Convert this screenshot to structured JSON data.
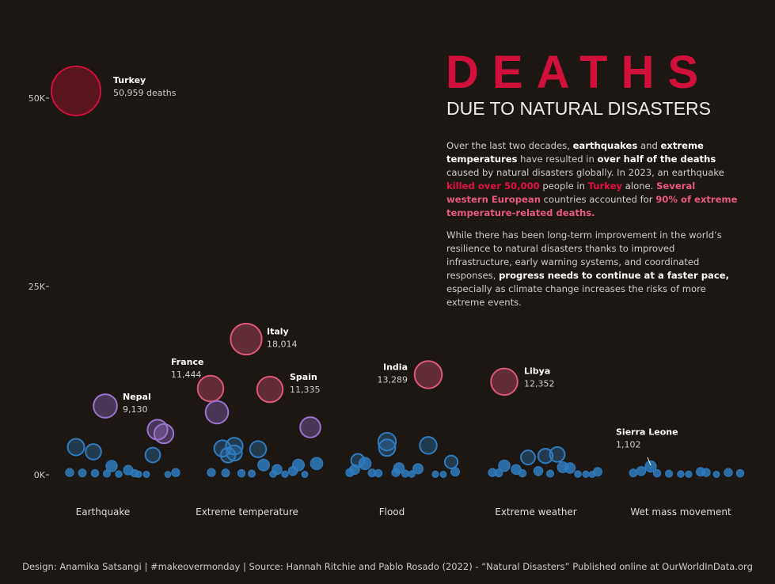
{
  "header": {
    "title": "DEATHS",
    "subtitle": "DUE TO NATURAL DISASTERS"
  },
  "paragraph1": {
    "t1": "Over the last two decades, ",
    "b1": "earthquakes",
    "t2": " and ",
    "b2": "extreme temperatures",
    "t3": " have resulted in ",
    "b3": "over half of the deaths",
    "t4": " caused by natural disasters globally. In 2023, an earthquake ",
    "r1": "killed over 50,000",
    "t5": " people in ",
    "r2": "Turkey",
    "t6": " alone. ",
    "p1": "Several western European",
    "t7": " countries accounted for ",
    "p2": "90% of extreme temperature-related deaths."
  },
  "paragraph2": {
    "t1": "While there has been long-term improvement in the world’s resilience to natural disasters thanks to improved infrastructure, early warning systems, and coordinated responses, ",
    "b1": "progress needs to continue at a faster pace,",
    "t2": " especially as climate change increases the risks of more extreme events."
  },
  "footer": "Design: Anamika Satsangi | #makeovermonday | Source: Hannah Ritchie and Pablo Rosado (2022) - “Natural Disasters” Published online at OurWorldInData.org",
  "colors": {
    "background": "#1c1712",
    "title": "#d0103a",
    "low": "#2f7bbf",
    "mid": "#9a72d0",
    "high": "#e0557a",
    "top": "#d0103a"
  },
  "chart_data": {
    "type": "scatter",
    "title": "Deaths due to natural disasters",
    "ylim": [
      0,
      52000
    ],
    "yticks": [
      {
        "v": 0,
        "label": "0K"
      },
      {
        "v": 25000,
        "label": "25K"
      },
      {
        "v": 50000,
        "label": "50K"
      }
    ],
    "categories": [
      "Earthquake",
      "Extreme temperature",
      "Flood",
      "Extreme weather",
      "Wet mass movement"
    ],
    "series": [
      {
        "name": "Earthquake",
        "points": [
          {
            "value": 50959,
            "label": "Turkey",
            "valueLabel": "50,959 deaths"
          },
          {
            "value": 9130,
            "label": "Nepal",
            "valueLabel": "9,130"
          },
          {
            "value": 5990
          },
          {
            "value": 5460
          },
          {
            "value": 3680
          },
          {
            "value": 3050
          },
          {
            "value": 2630
          },
          {
            "value": 1160
          },
          {
            "value": 620
          },
          {
            "value": 300
          },
          {
            "value": 250
          },
          {
            "value": 200
          },
          {
            "value": 150
          },
          {
            "value": 100
          },
          {
            "value": 80
          },
          {
            "value": 60
          },
          {
            "value": 50
          },
          {
            "value": 300
          },
          {
            "value": 200
          }
        ]
      },
      {
        "name": "Extreme temperature",
        "points": [
          {
            "value": 18014,
            "label": "Italy",
            "valueLabel": "18,014"
          },
          {
            "value": 11444,
            "label": "France",
            "valueLabel": "11,444"
          },
          {
            "value": 11335,
            "label": "Spain",
            "valueLabel": "11,335"
          },
          {
            "value": 8300
          },
          {
            "value": 6300
          },
          {
            "value": 3500
          },
          {
            "value": 3800
          },
          {
            "value": 2600
          },
          {
            "value": 2900
          },
          {
            "value": 3400
          },
          {
            "value": 1300
          },
          {
            "value": 1300
          },
          {
            "value": 1500
          },
          {
            "value": 700
          },
          {
            "value": 500
          },
          {
            "value": 300
          },
          {
            "value": 250
          },
          {
            "value": 200
          },
          {
            "value": 150
          },
          {
            "value": 100
          },
          {
            "value": 80
          },
          {
            "value": 60
          }
        ]
      },
      {
        "name": "Flood",
        "points": [
          {
            "value": 13289,
            "label": "India",
            "valueLabel": "13,289"
          },
          {
            "value": 4400
          },
          {
            "value": 3600
          },
          {
            "value": 3900
          },
          {
            "value": 1900
          },
          {
            "value": 1500
          },
          {
            "value": 1700
          },
          {
            "value": 900
          },
          {
            "value": 800
          },
          {
            "value": 700
          },
          {
            "value": 300
          },
          {
            "value": 250
          },
          {
            "value": 200
          },
          {
            "value": 150
          },
          {
            "value": 100
          },
          {
            "value": 80
          },
          {
            "value": 60
          },
          {
            "value": 400
          },
          {
            "value": 300
          }
        ]
      },
      {
        "name": "Extreme weather",
        "points": [
          {
            "value": 12352,
            "label": "Libya",
            "valueLabel": "12,352"
          },
          {
            "value": 2500
          },
          {
            "value": 2700
          },
          {
            "value": 2300
          },
          {
            "value": 1200
          },
          {
            "value": 1000
          },
          {
            "value": 900
          },
          {
            "value": 700
          },
          {
            "value": 500
          },
          {
            "value": 300
          },
          {
            "value": 250
          },
          {
            "value": 200
          },
          {
            "value": 150
          },
          {
            "value": 100
          },
          {
            "value": 80
          },
          {
            "value": 60
          },
          {
            "value": 400
          }
        ]
      },
      {
        "name": "Wet mass movement",
        "points": [
          {
            "value": 1102,
            "label": "Sierra Leone",
            "valueLabel": "1,102"
          },
          {
            "value": 500
          },
          {
            "value": 400
          },
          {
            "value": 300
          },
          {
            "value": 250
          },
          {
            "value": 200
          },
          {
            "value": 150
          },
          {
            "value": 100
          },
          {
            "value": 80
          },
          {
            "value": 60
          },
          {
            "value": 300
          },
          {
            "value": 200
          }
        ]
      }
    ]
  }
}
